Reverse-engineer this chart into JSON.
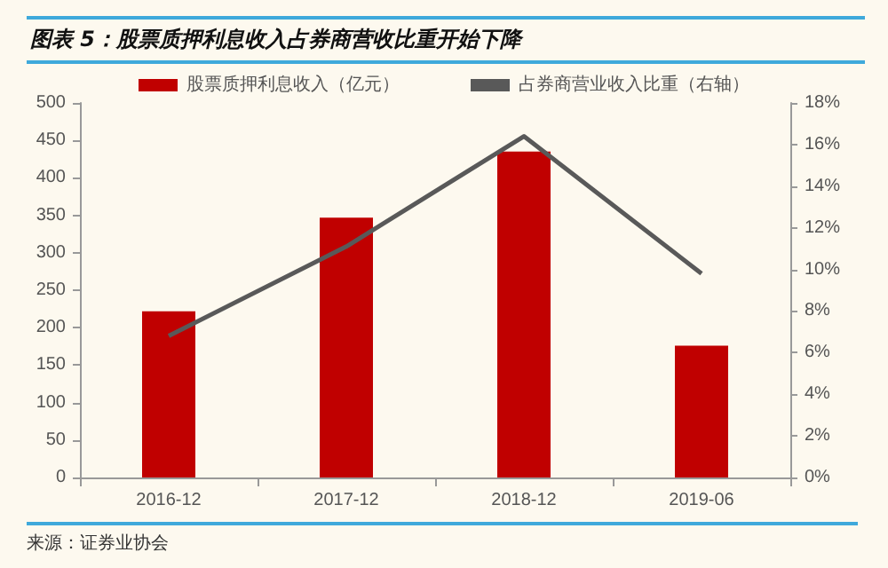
{
  "chart_data": {
    "type": "bar",
    "title": "图表 5：股票质押利息收入占券商营收比重开始下降",
    "categories": [
      "2016-12",
      "2017-12",
      "2018-12",
      "2019-06"
    ],
    "series": [
      {
        "name": "股票质押利息收入（亿元）",
        "color": "#c00000",
        "values": [
          222,
          347,
          435,
          176
        ]
      },
      {
        "name": "占券商营业收入比重（右轴）",
        "color": "#595959",
        "type": "line",
        "axis": "y2",
        "values": [
          6.8,
          11.1,
          16.4,
          9.8
        ]
      }
    ],
    "ylim": [
      0,
      500
    ],
    "yticks": [
      0,
      50,
      100,
      150,
      200,
      250,
      300,
      350,
      400,
      450,
      500
    ],
    "y2lim": [
      0,
      18
    ],
    "y2ticks": [
      {
        "value": 0,
        "label": "0%"
      },
      {
        "value": 2,
        "label": "2%"
      },
      {
        "value": 4,
        "label": "4%"
      },
      {
        "value": 6,
        "label": "6%"
      },
      {
        "value": 8,
        "label": "8%"
      },
      {
        "value": 10,
        "label": "10%"
      },
      {
        "value": 12,
        "label": "12%"
      },
      {
        "value": 14,
        "label": "14%"
      },
      {
        "value": 16,
        "label": "16%"
      },
      {
        "value": 18,
        "label": "18%"
      }
    ],
    "legend": "top",
    "grid": false,
    "marker": "none",
    "annotations": [
      "来源：证券业协会"
    ]
  }
}
